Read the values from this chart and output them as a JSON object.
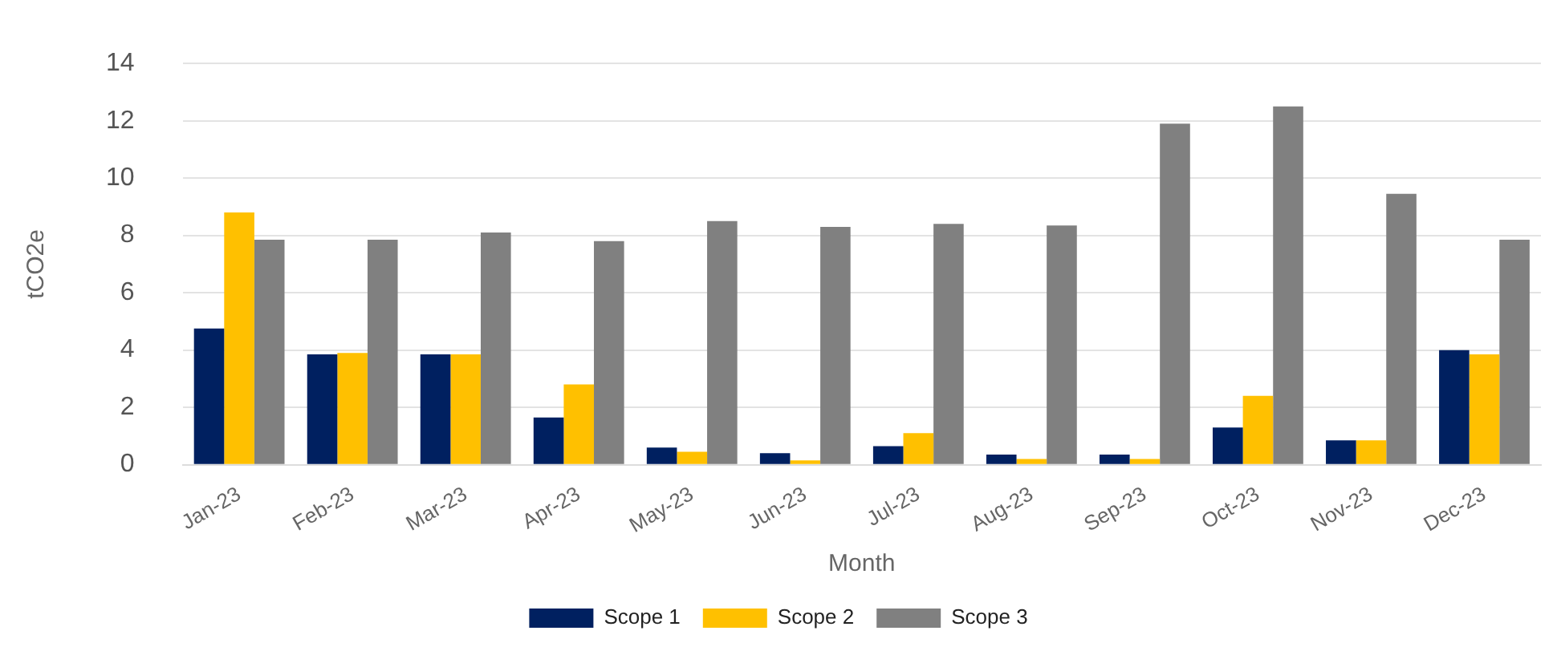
{
  "chart_data": {
    "type": "bar",
    "xlabel": "Month",
    "ylabel": "tCO2e",
    "categories": [
      "Jan-23",
      "Feb-23",
      "Mar-23",
      "Apr-23",
      "May-23",
      "Jun-23",
      "Jul-23",
      "Aug-23",
      "Sep-23",
      "Oct-23",
      "Nov-23",
      "Dec-23"
    ],
    "series": [
      {
        "name": "Scope 1",
        "color": "#002060",
        "values": [
          4.75,
          3.85,
          3.85,
          1.65,
          0.6,
          0.4,
          0.65,
          0.35,
          0.35,
          1.3,
          0.85,
          4.0
        ]
      },
      {
        "name": "Scope 2",
        "color": "#ffc000",
        "values": [
          8.8,
          3.9,
          3.85,
          2.8,
          0.45,
          0.15,
          1.1,
          0.2,
          0.2,
          2.4,
          0.85,
          3.85
        ]
      },
      {
        "name": "Scope 3",
        "color": "#808080",
        "values": [
          7.85,
          7.85,
          8.1,
          7.8,
          8.5,
          8.3,
          8.4,
          8.35,
          11.9,
          12.5,
          9.45,
          7.85
        ]
      }
    ],
    "ylim": [
      0,
      14
    ],
    "yticks": [
      0,
      2,
      4,
      6,
      8,
      10,
      12,
      14
    ],
    "grid": "y",
    "legend": "bottom"
  }
}
